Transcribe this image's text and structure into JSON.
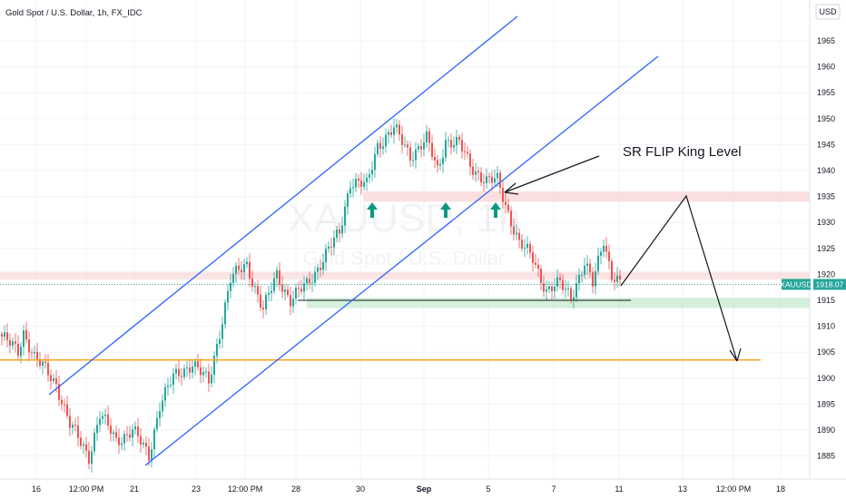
{
  "header": {
    "title": "Gold Spot / U.S. Dollar, 1h, FX_IDC",
    "currency": "USD"
  },
  "watermark": {
    "symbol": "XAUUSD, 1h",
    "description": "Gold Spot / U.S. Dollar"
  },
  "price_badge": {
    "symbol": "XAUUSD",
    "price": "1918.07"
  },
  "annotation": {
    "label": "SR FLIP King Level"
  },
  "colors": {
    "up": "#26a69a",
    "down": "#ef5350",
    "channel": "#2962ff",
    "support": "#f5a623",
    "zone_red": "#f7c6c6",
    "zone_green": "#bfe8c7",
    "arrow_up": "#089981",
    "badge": "#26a69a"
  },
  "chart_data": {
    "type": "candlestick",
    "symbol": "XAUUSD",
    "interval": "1h",
    "ylim": [
      1882,
      1970
    ],
    "y_ticks": [
      1885,
      1890,
      1895,
      1900,
      1905,
      1910,
      1915,
      1920,
      1925,
      1930,
      1935,
      1940,
      1945,
      1950,
      1955,
      1960,
      1965
    ],
    "x_ticks": [
      "16",
      "12:00 PM",
      "21",
      "23",
      "12:00 PM",
      "28",
      "30",
      "Sep",
      "5",
      "7",
      "11",
      "13",
      "12:00 PM",
      "18"
    ],
    "price_path": [
      [
        0,
        1908
      ],
      [
        6,
        1905
      ],
      [
        8,
        1909
      ],
      [
        12,
        1904
      ],
      [
        20,
        1899
      ],
      [
        25,
        1891
      ],
      [
        32,
        1885
      ],
      [
        36,
        1893
      ],
      [
        42,
        1888
      ],
      [
        48,
        1890
      ],
      [
        54,
        1885
      ],
      [
        58,
        1895
      ],
      [
        63,
        1900
      ],
      [
        70,
        1903
      ],
      [
        76,
        1899
      ],
      [
        84,
        1919
      ],
      [
        90,
        1922
      ],
      [
        96,
        1913
      ],
      [
        101,
        1920
      ],
      [
        106,
        1915
      ],
      [
        112,
        1918
      ],
      [
        118,
        1923
      ],
      [
        124,
        1928
      ],
      [
        128,
        1938
      ],
      [
        134,
        1937
      ],
      [
        138,
        1945
      ],
      [
        144,
        1948
      ],
      [
        150,
        1943
      ],
      [
        156,
        1946
      ],
      [
        160,
        1940
      ],
      [
        163,
        1946
      ],
      [
        168,
        1945
      ],
      [
        172,
        1941
      ],
      [
        178,
        1938
      ],
      [
        182,
        1938
      ],
      [
        186,
        1932
      ],
      [
        190,
        1926
      ],
      [
        195,
        1923
      ],
      [
        200,
        1917
      ],
      [
        205,
        1918
      ],
      [
        209,
        1916
      ],
      [
        214,
        1922
      ],
      [
        217,
        1918
      ],
      [
        221,
        1927
      ],
      [
        224,
        1920
      ],
      [
        227,
        1918
      ]
    ],
    "current_price": 1918.07,
    "horizontal_levels": [
      {
        "name": "SR flip zone",
        "from": 1934,
        "to": 1936
      },
      {
        "name": "Resistance zone",
        "from": 1919,
        "to": 1920.5
      },
      {
        "name": "Support zone",
        "from": 1913.5,
        "to": 1915.5
      },
      {
        "name": "Support line",
        "value": 1915
      },
      {
        "name": "Major support",
        "value": 1903.5
      }
    ],
    "annotations": [
      {
        "text": "SR FLIP King Level",
        "points_to_price": 1937
      }
    ]
  }
}
